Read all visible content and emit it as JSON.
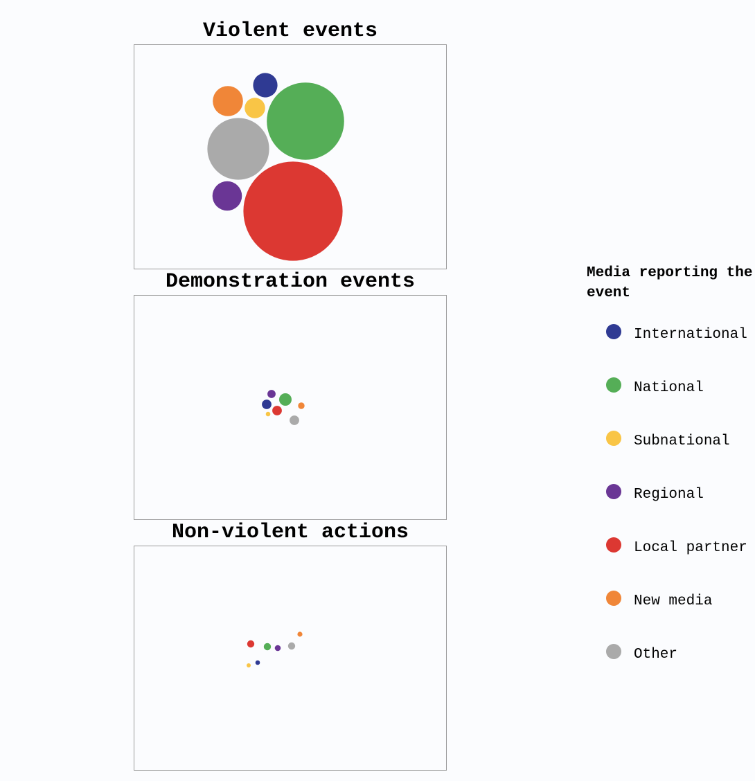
{
  "chart_data": [
    {
      "type": "bubble",
      "title": "Violent events",
      "series": [
        {
          "name": "International",
          "value": 1.7
        },
        {
          "name": "National",
          "value": 17.1
        },
        {
          "name": "Subnational",
          "value": 1.2
        },
        {
          "name": "Regional",
          "value": 2.5
        },
        {
          "name": "Local partner",
          "value": 28.1
        },
        {
          "name": "New media",
          "value": 2.6
        },
        {
          "name": "Other",
          "value": 10.9
        }
      ]
    },
    {
      "type": "bubble",
      "title": "Demonstration events",
      "series": [
        {
          "name": "International",
          "value": 0.26
        },
        {
          "name": "National",
          "value": 0.44
        },
        {
          "name": "Subnational",
          "value": 0.06
        },
        {
          "name": "Regional",
          "value": 0.19
        },
        {
          "name": "Local partner",
          "value": 0.26
        },
        {
          "name": "New media",
          "value": 0.12
        },
        {
          "name": "Other",
          "value": 0.26
        }
      ]
    },
    {
      "type": "bubble",
      "title": "Non-violent actions",
      "series": [
        {
          "name": "International",
          "value": 0.06
        },
        {
          "name": "National",
          "value": 0.15
        },
        {
          "name": "Subnational",
          "value": 0.05
        },
        {
          "name": "Regional",
          "value": 0.1
        },
        {
          "name": "Local partner",
          "value": 0.15
        },
        {
          "name": "New media",
          "value": 0.07
        },
        {
          "name": "Other",
          "value": 0.15
        }
      ]
    }
  ],
  "legend": {
    "title": "Media reporting the event",
    "items": [
      {
        "label": "International",
        "color": "#2f3a93"
      },
      {
        "label": "National",
        "color": "#55ae57"
      },
      {
        "label": "Subnational",
        "color": "#f9c546"
      },
      {
        "label": "Regional",
        "color": "#6a3695"
      },
      {
        "label": "Local partner",
        "color": "#dc3832"
      },
      {
        "label": "New media",
        "color": "#f08638"
      },
      {
        "label": "Other",
        "color": "#aaaaaa"
      }
    ]
  }
}
